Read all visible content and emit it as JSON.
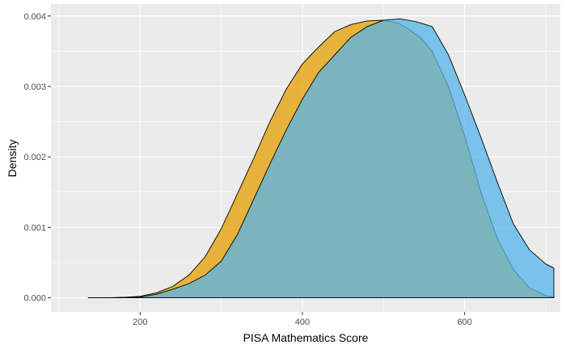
{
  "chart_data": {
    "type": "area",
    "xlabel": "PISA Mathematics Score",
    "ylabel": "Density",
    "xlim": [
      90,
      718
    ],
    "ylim": [
      -0.0002,
      0.00417
    ],
    "x_ticks": [
      200,
      400,
      600
    ],
    "x_tick_labels": [
      "200",
      "400",
      "600"
    ],
    "y_ticks": [
      0.0,
      0.001,
      0.002,
      0.003,
      0.004
    ],
    "y_tick_labels": [
      "0.000",
      "0.001",
      "0.002",
      "0.003",
      "0.004"
    ],
    "grid": true,
    "legend": "none",
    "panel_background": "#EBEBEB",
    "grid_color": "#FFFFFF",
    "series": [
      {
        "color": "#E69F00",
        "fill_opacity": 0.75,
        "points": [
          [
            136,
            0.0
          ],
          [
            160,
            0.0
          ],
          [
            180,
            5e-06
          ],
          [
            200,
            2e-05
          ],
          [
            220,
            7e-05
          ],
          [
            240,
            0.00016
          ],
          [
            260,
            0.00032
          ],
          [
            280,
            0.00058
          ],
          [
            300,
            0.00098
          ],
          [
            320,
            0.00148
          ],
          [
            340,
            0.00198
          ],
          [
            360,
            0.0025
          ],
          [
            380,
            0.00296
          ],
          [
            400,
            0.00332
          ],
          [
            420,
            0.00356
          ],
          [
            440,
            0.00378
          ],
          [
            460,
            0.00388
          ],
          [
            480,
            0.00393
          ],
          [
            500,
            0.00394
          ],
          [
            518,
            0.0039
          ],
          [
            530,
            0.00382
          ],
          [
            545,
            0.0037
          ],
          [
            560,
            0.0035
          ],
          [
            580,
            0.003
          ],
          [
            600,
            0.0023
          ],
          [
            620,
            0.0015
          ],
          [
            640,
            0.00085
          ],
          [
            660,
            0.0004
          ],
          [
            680,
            0.00014
          ],
          [
            700,
            3e-05
          ],
          [
            710,
            1e-05
          ]
        ]
      },
      {
        "color": "#56B4E9",
        "fill_opacity": 0.75,
        "points": [
          [
            136,
            0.0
          ],
          [
            160,
            0.0
          ],
          [
            180,
            5e-06
          ],
          [
            200,
            1e-05
          ],
          [
            220,
            5e-05
          ],
          [
            240,
            0.00012
          ],
          [
            260,
            0.0002
          ],
          [
            280,
            0.00032
          ],
          [
            300,
            0.00052
          ],
          [
            320,
            0.0009
          ],
          [
            340,
            0.0014
          ],
          [
            360,
            0.0019
          ],
          [
            380,
            0.00238
          ],
          [
            400,
            0.00282
          ],
          [
            420,
            0.0032
          ],
          [
            440,
            0.00345
          ],
          [
            460,
            0.0037
          ],
          [
            480,
            0.00385
          ],
          [
            500,
            0.00394
          ],
          [
            520,
            0.00396
          ],
          [
            540,
            0.00392
          ],
          [
            560,
            0.00385
          ],
          [
            580,
            0.00345
          ],
          [
            600,
            0.00288
          ],
          [
            620,
            0.00228
          ],
          [
            640,
            0.00165
          ],
          [
            660,
            0.00105
          ],
          [
            680,
            0.00068
          ],
          [
            700,
            0.00048
          ],
          [
            710,
            0.00042
          ]
        ]
      }
    ]
  }
}
